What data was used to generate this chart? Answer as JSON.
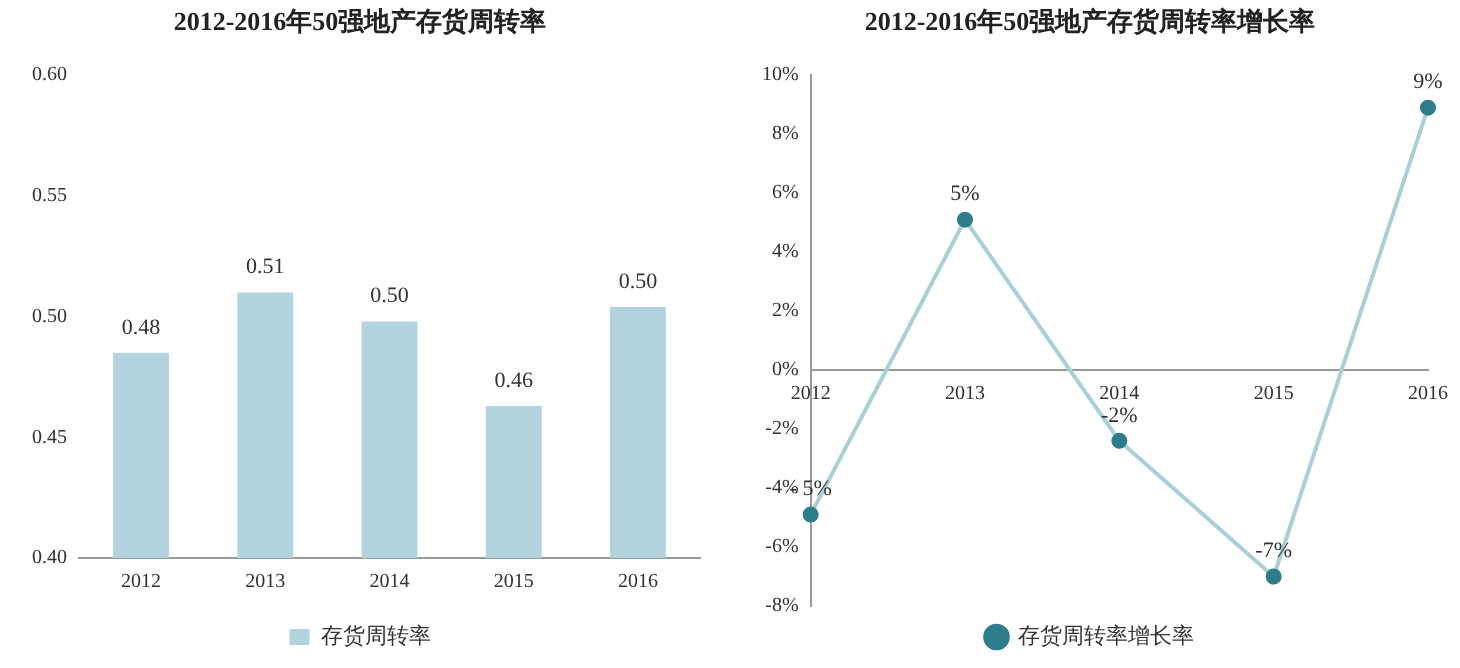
{
  "chart_data": [
    {
      "type": "bar",
      "title": "2012-2016年50强地产存货周转率",
      "categories": [
        "2012",
        "2013",
        "2014",
        "2015",
        "2016"
      ],
      "series": [
        {
          "name": "存货周转率",
          "color": "#b3d4de",
          "values": [
            0.485,
            0.51,
            0.498,
            0.463,
            0.504
          ],
          "value_labels": [
            "0.48",
            "0.51",
            "0.50",
            "0.46",
            "0.50"
          ]
        }
      ],
      "ylim": [
        0.4,
        0.6
      ],
      "yticks": [
        {
          "value": 0.4,
          "label": "0.40"
        },
        {
          "value": 0.45,
          "label": "0.45"
        },
        {
          "value": 0.5,
          "label": "0.50"
        },
        {
          "value": 0.55,
          "label": "0.55"
        },
        {
          "value": 0.6,
          "label": "0.60"
        }
      ],
      "grid": false,
      "legend": "bottom"
    },
    {
      "type": "line",
      "title": "2012-2016年50强地产存货周转率增长率",
      "categories": [
        "2012",
        "2013",
        "2014",
        "2015",
        "2016"
      ],
      "series": [
        {
          "name": "存货周转率增长率",
          "color": "#a9cfd9",
          "values": [
            -4.9,
            5.1,
            -2.4,
            -7.0,
            8.9
          ],
          "value_labels": [
            "- 5%",
            "5%",
            "-2%",
            "-7%",
            "9%"
          ]
        }
      ],
      "ylim": [
        -8,
        10
      ],
      "yticks": [
        {
          "value": -8,
          "label": "-8%"
        },
        {
          "value": -6,
          "label": "-6%"
        },
        {
          "value": -4,
          "label": "-4%"
        },
        {
          "value": -2,
          "label": "-2%"
        },
        {
          "value": 0,
          "label": "0%"
        },
        {
          "value": 2,
          "label": "2%"
        },
        {
          "value": 4,
          "label": "4%"
        },
        {
          "value": 6,
          "label": "6%"
        },
        {
          "value": 8,
          "label": "8%"
        },
        {
          "value": 10,
          "label": "10%"
        }
      ],
      "grid": false,
      "legend": "bottom",
      "marker": "circle",
      "line_style": "solid"
    }
  ]
}
